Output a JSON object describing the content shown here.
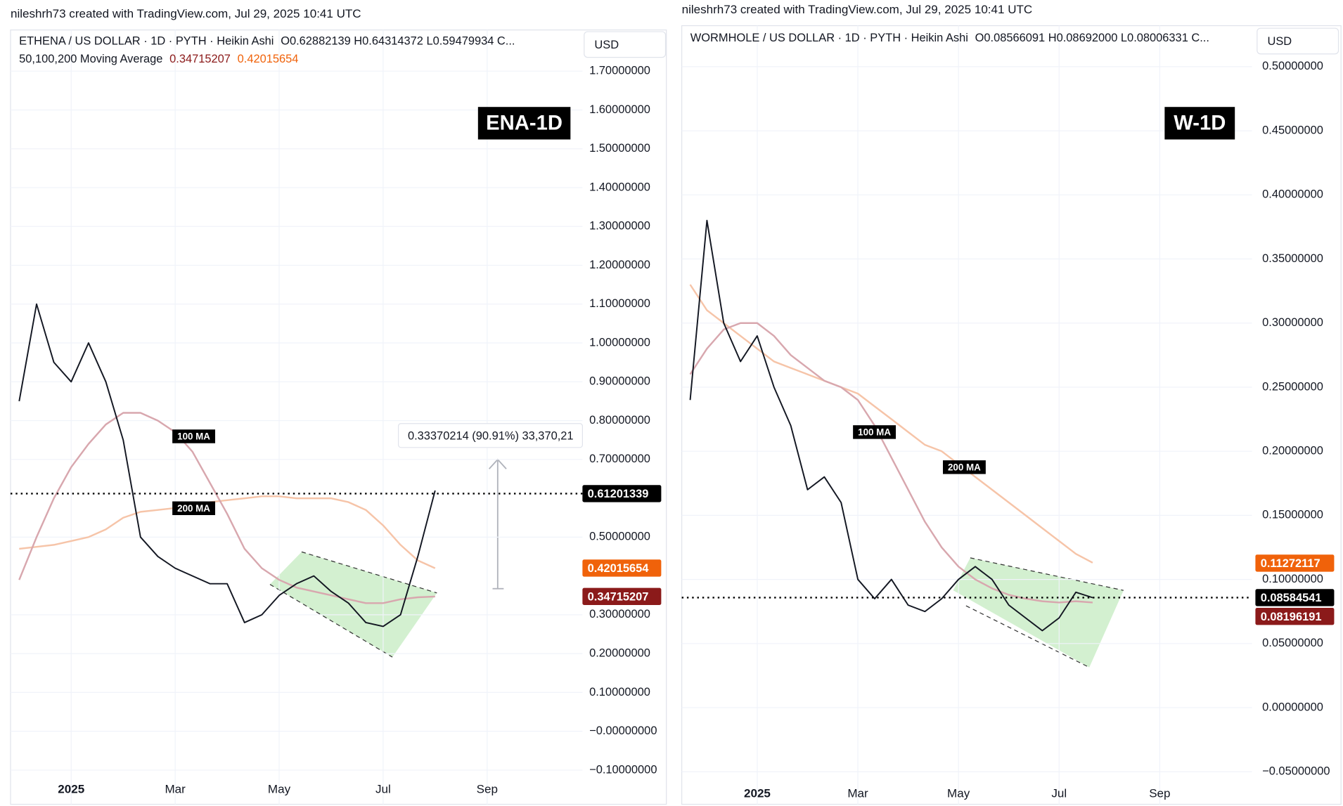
{
  "chart_data": [
    {
      "type": "line",
      "credit": "nileshrh73 created with TradingView.com, Jul 29, 2025 10:41 UTC",
      "title": "ETHENA / US DOLLAR · 1D · PYTH · Heikin Ashi",
      "ohlc": "O0.62882139  H0.64314372  L0.59479934  C...",
      "indicator": "50,100,200 Moving Average",
      "currency": "USD",
      "badge": "ENA-1D",
      "measure": "0.33370214 (90.91%) 33,370,21",
      "categories": [
        null,
        null,
        null,
        "2025",
        null,
        null,
        null,
        null,
        null,
        "Mar",
        null,
        null,
        null,
        null,
        null,
        "May",
        null,
        null,
        null,
        null,
        null,
        "Jul",
        null,
        null,
        null,
        null,
        null,
        "Sep",
        null,
        null,
        null,
        null,
        null
      ],
      "series": [
        {
          "color": "#131722",
          "values": [
            0.85,
            1.1,
            0.95,
            0.9,
            1.0,
            0.9,
            0.75,
            0.5,
            0.45,
            0.42,
            0.4,
            0.38,
            0.38,
            0.28,
            0.3,
            0.35,
            0.38,
            0.4,
            0.36,
            0.33,
            0.28,
            0.27,
            0.3,
            0.45,
            0.62,
            null,
            null,
            null,
            null,
            null,
            null,
            null,
            null
          ]
        },
        {
          "name": "100 MA",
          "color": "#d8a7ae",
          "values": [
            0.39,
            0.5,
            0.6,
            0.68,
            0.74,
            0.79,
            0.82,
            0.82,
            0.8,
            0.77,
            0.72,
            0.64,
            0.56,
            0.47,
            0.42,
            0.39,
            0.37,
            0.36,
            0.35,
            0.34,
            0.33,
            0.33,
            0.34,
            0.345,
            0.347,
            null,
            null,
            null,
            null,
            null,
            null,
            null,
            null
          ]
        },
        {
          "name": "200 MA",
          "color": "#f6c4a8",
          "values": [
            0.47,
            0.475,
            0.48,
            0.49,
            0.5,
            0.52,
            0.55,
            0.565,
            0.57,
            0.575,
            0.58,
            0.59,
            0.595,
            0.6,
            0.605,
            0.605,
            0.6,
            0.6,
            0.6,
            0.59,
            0.57,
            0.53,
            0.48,
            0.44,
            0.42,
            null,
            null,
            null,
            null,
            null,
            null,
            null,
            null
          ]
        }
      ],
      "price_labels": [
        {
          "value": 0.61201339,
          "label": "0.61201339",
          "color": "#000000"
        },
        {
          "value": 0.42015654,
          "label": "0.42015654",
          "color": "#f0620a"
        },
        {
          "value": 0.34715207,
          "label": "0.34715207",
          "color": "#8b1a1a"
        }
      ],
      "ylim": [
        -0.188,
        1.806
      ],
      "yticks": [
        {
          "value": 1.7,
          "label": "1.70000000"
        },
        {
          "value": 1.6,
          "label": "1.60000000"
        },
        {
          "value": 1.5,
          "label": "1.50000000"
        },
        {
          "value": 1.4,
          "label": "1.40000000"
        },
        {
          "value": 1.3,
          "label": "1.30000000"
        },
        {
          "value": 1.2,
          "label": "1.20000000"
        },
        {
          "value": 1.1,
          "label": "1.10000000"
        },
        {
          "value": 1.0,
          "label": "1.00000000"
        },
        {
          "value": 0.9,
          "label": "0.90000000"
        },
        {
          "value": 0.8,
          "label": "0.80000000"
        },
        {
          "value": 0.7,
          "label": "0.70000000"
        },
        {
          "value": 0.5,
          "label": "0.50000000"
        },
        {
          "value": 0.3,
          "label": "0.30000000"
        },
        {
          "value": 0.2,
          "label": "0.20000000"
        },
        {
          "value": 0.1,
          "label": "0.10000000"
        },
        {
          "value": 0,
          "label": "−0.00000000"
        },
        {
          "value": -0.1,
          "label": "−0.10000000"
        }
      ],
      "grid": true
    },
    {
      "type": "line",
      "credit": "nileshrh73 created with TradingView.com, Jul 29, 2025 10:41 UTC",
      "title": "WORMHOLE / US DOLLAR · 1D · PYTH · Heikin Ashi",
      "ohlc": "O0.08566091  H0.08692000  L0.08006331  C...",
      "currency": "USD",
      "badge": "W-1D",
      "categories": [
        null,
        null,
        null,
        null,
        "2025",
        null,
        null,
        null,
        null,
        null,
        "Mar",
        null,
        null,
        null,
        null,
        null,
        "May",
        null,
        null,
        null,
        null,
        null,
        "Jul",
        null,
        null,
        null,
        null,
        null,
        "Sep",
        null,
        null,
        null,
        null,
        null
      ],
      "series": [
        {
          "color": "#131722",
          "values": [
            0.24,
            0.38,
            0.3,
            0.27,
            0.29,
            0.25,
            0.22,
            0.17,
            0.18,
            0.16,
            0.1,
            0.085,
            0.1,
            0.08,
            0.075,
            0.085,
            0.1,
            0.11,
            0.1,
            0.08,
            0.07,
            0.06,
            0.07,
            0.09,
            0.0858,
            null,
            null,
            null,
            null,
            null,
            null,
            null,
            null,
            null
          ]
        },
        {
          "name": "100 MA",
          "color": "#d8a7ae",
          "values": [
            0.26,
            0.28,
            0.295,
            0.3,
            0.3,
            0.29,
            0.275,
            0.265,
            0.255,
            0.25,
            0.24,
            0.22,
            0.195,
            0.17,
            0.145,
            0.125,
            0.11,
            0.1,
            0.093,
            0.088,
            0.085,
            0.083,
            0.082,
            0.083,
            0.082,
            null,
            null,
            null,
            null,
            null,
            null,
            null,
            null,
            null
          ]
        },
        {
          "name": "200 MA",
          "color": "#f6c4a8",
          "values": [
            0.33,
            0.31,
            0.3,
            0.29,
            0.28,
            0.27,
            0.265,
            0.26,
            0.255,
            0.25,
            0.245,
            0.235,
            0.225,
            0.215,
            0.205,
            0.2,
            0.19,
            0.18,
            0.17,
            0.16,
            0.15,
            0.14,
            0.13,
            0.12,
            0.113,
            null,
            null,
            null,
            null,
            null,
            null,
            null,
            null,
            null
          ]
        }
      ],
      "price_labels": [
        {
          "value": 0.11272117,
          "label": "0.11272117",
          "color": "#f0620a"
        },
        {
          "value": 0.08584541,
          "label": "0.08584541",
          "color": "#000000"
        },
        {
          "value": 0.08196191,
          "label": "0.08196191",
          "color": "#8b1a1a"
        }
      ],
      "ylim": [
        -0.0754,
        0.532
      ],
      "yticks": [
        {
          "value": 0.5,
          "label": "0.50000000"
        },
        {
          "value": 0.45,
          "label": "0.45000000"
        },
        {
          "value": 0.4,
          "label": "0.40000000"
        },
        {
          "value": 0.35,
          "label": "0.35000000"
        },
        {
          "value": 0.3,
          "label": "0.30000000"
        },
        {
          "value": 0.25,
          "label": "0.25000000"
        },
        {
          "value": 0.2,
          "label": "0.20000000"
        },
        {
          "value": 0.15,
          "label": "0.15000000"
        },
        {
          "value": 0.1,
          "label": "0.10000000"
        },
        {
          "value": 0.05,
          "label": "0.05000000"
        },
        {
          "value": 0,
          "label": "0.00000000"
        },
        {
          "value": -0.05,
          "label": "−0.05000000"
        }
      ],
      "grid": true
    }
  ]
}
